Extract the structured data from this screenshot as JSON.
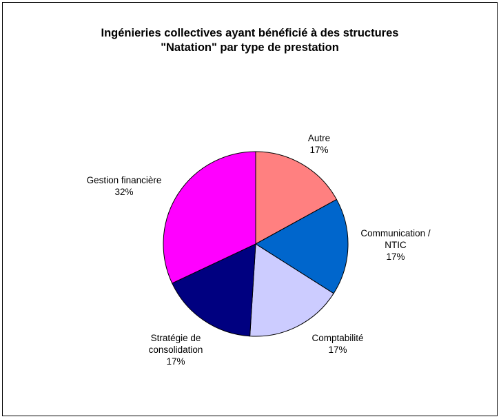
{
  "chart_data": {
    "type": "pie",
    "title": [
      "Ingénieries collectives ayant bénéficié à des structures",
      "\"Natation\" par type de prestation"
    ],
    "slices": [
      {
        "label_lines": [
          "Autre",
          "17%"
        ],
        "value": 17,
        "color": "#ff8080"
      },
      {
        "label_lines": [
          "Communication /",
          "NTIC",
          "17%"
        ],
        "value": 17,
        "color": "#0066cc"
      },
      {
        "label_lines": [
          "Comptabilité",
          "17%"
        ],
        "value": 17,
        "color": "#ccccff"
      },
      {
        "label_lines": [
          "Stratégie de",
          "consolidation",
          "17%"
        ],
        "value": 17,
        "color": "#000080"
      },
      {
        "label_lines": [
          "Gestion financière",
          "32%"
        ],
        "value": 32,
        "color": "#ff00ff"
      }
    ],
    "start_angle_deg": 0,
    "direction": "clockwise",
    "legend": "none",
    "slice_border_color": "#000000"
  }
}
